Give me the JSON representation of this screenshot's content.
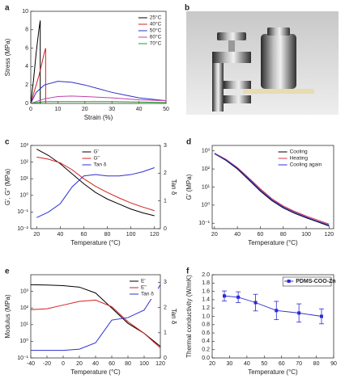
{
  "chart_data": [
    {
      "type": "line",
      "label": "a",
      "xlabel": "Strain (%)",
      "ylabel": "Stress (MPa)",
      "xlim": [
        0,
        50
      ],
      "xticks": [
        0,
        10,
        20,
        30,
        40,
        50
      ],
      "ylim": [
        0,
        10
      ],
      "yticks": [
        0,
        2,
        4,
        6,
        8,
        10
      ],
      "legend": "upper right",
      "series": [
        {
          "name": "25°C",
          "color": "#000000",
          "x": [
            0,
            1,
            2,
            3,
            3.5,
            3.5
          ],
          "values": [
            0,
            2.5,
            5.5,
            8,
            9,
            0
          ]
        },
        {
          "name": "40°C",
          "color": "#d62020",
          "x": [
            0,
            1,
            2,
            3,
            4,
            5,
            5.5,
            5.5
          ],
          "values": [
            0,
            1,
            2,
            3,
            4.2,
            5.5,
            6,
            0
          ]
        },
        {
          "name": "50°C",
          "color": "#3030c0",
          "x": [
            0,
            2,
            5,
            10,
            15,
            20,
            25,
            30,
            35,
            40,
            45,
            50
          ],
          "values": [
            0,
            1.2,
            2,
            2.4,
            2.3,
            2,
            1.6,
            1.2,
            0.9,
            0.6,
            0.45,
            0.3
          ]
        },
        {
          "name": "60°C",
          "color": "#c040b0",
          "x": [
            0,
            5,
            10,
            15,
            20,
            30,
            40,
            50
          ],
          "values": [
            0,
            0.5,
            0.75,
            0.8,
            0.75,
            0.6,
            0.4,
            0.3
          ]
        },
        {
          "name": "70°C",
          "color": "#20a020",
          "x": [
            0,
            5,
            10,
            20,
            30,
            40,
            50
          ],
          "values": [
            0,
            0.2,
            0.2,
            0.2,
            0.2,
            0.15,
            0.1
          ]
        }
      ]
    },
    {
      "type": "image",
      "label": "b"
    },
    {
      "type": "line",
      "label": "c",
      "xlabel": "Temperature (°C)",
      "ylabel": "G', G\" (MPa)",
      "y2label": "Tan δ",
      "ylog": true,
      "xlim": [
        15,
        125
      ],
      "xticks": [
        20,
        40,
        60,
        80,
        100,
        120
      ],
      "ylim": [
        0.01,
        1000
      ],
      "yticks": [
        {
          "value": 0.01,
          "label": "10⁻²"
        },
        {
          "value": 0.1,
          "label": "10⁻¹"
        },
        {
          "value": 1,
          "label": "10⁰"
        },
        {
          "value": 10,
          "label": "10¹"
        },
        {
          "value": 100,
          "label": "10²"
        },
        {
          "value": 1000,
          "label": "10³"
        }
      ],
      "y2lim": [
        0,
        3
      ],
      "y2ticks": [
        0,
        1,
        2,
        3
      ],
      "legend": "upper center",
      "x": [
        20,
        30,
        40,
        50,
        60,
        70,
        80,
        90,
        100,
        110,
        120
      ],
      "series": [
        {
          "name": "G'",
          "color": "#000000",
          "values": [
            600,
            250,
            80,
            20,
            5,
            1.5,
            0.6,
            0.3,
            0.15,
            0.09,
            0.06
          ]
        },
        {
          "name": "G\"",
          "color": "#d62020",
          "values": [
            200,
            150,
            90,
            35,
            10,
            3.5,
            1.5,
            0.7,
            0.35,
            0.2,
            0.12
          ]
        },
        {
          "name": "Tan δ",
          "color": "#3030d0",
          "axis": "y2",
          "values": [
            0.4,
            0.6,
            0.9,
            1.5,
            1.9,
            1.95,
            1.9,
            1.9,
            1.95,
            2.05,
            2.2
          ]
        }
      ]
    },
    {
      "type": "line",
      "label": "d",
      "xlabel": "Temperature (°C)",
      "ylabel": "G' (MPa)",
      "ylog": true,
      "xlim": [
        18,
        124
      ],
      "xticks": [
        20,
        40,
        60,
        80,
        100,
        120
      ],
      "ylim": [
        0.05,
        2000
      ],
      "yticks": [
        {
          "value": 0.1,
          "label": "10⁻¹"
        },
        {
          "value": 1,
          "label": "10⁰"
        },
        {
          "value": 10,
          "label": "10¹"
        },
        {
          "value": 100,
          "label": "10²"
        },
        {
          "value": 1000,
          "label": "10³"
        }
      ],
      "legend": "upper right",
      "x": [
        20,
        30,
        40,
        50,
        60,
        70,
        80,
        90,
        100,
        110,
        120
      ],
      "series": [
        {
          "name": "Cooling",
          "color": "#000000",
          "values": [
            700,
            300,
            100,
            25,
            6,
            1.8,
            0.7,
            0.35,
            0.2,
            0.12,
            0.07
          ]
        },
        {
          "name": "Heating",
          "color": "#e03050",
          "values": [
            750,
            340,
            120,
            32,
            8,
            2.3,
            0.9,
            0.45,
            0.25,
            0.15,
            0.09
          ]
        },
        {
          "name": "Cooling again",
          "color": "#3030d0",
          "values": [
            720,
            320,
            110,
            28,
            7,
            2,
            0.8,
            0.4,
            0.22,
            0.13,
            0.08
          ]
        }
      ]
    },
    {
      "type": "line",
      "label": "e",
      "xlabel": "Temperature (°C)",
      "ylabel": "Modulus (MPa)",
      "y2label": "Tan δ",
      "ylog": true,
      "xlim": [
        -40,
        120
      ],
      "xticks": [
        -40,
        -20,
        0,
        20,
        40,
        60,
        80,
        100,
        120
      ],
      "ylim": [
        0.1,
        10000
      ],
      "yticks": [
        {
          "value": 0.1,
          "label": "10⁻¹"
        },
        {
          "value": 1,
          "label": "10⁰"
        },
        {
          "value": 10,
          "label": "10¹"
        },
        {
          "value": 100,
          "label": "10²"
        },
        {
          "value": 1000,
          "label": "10³"
        }
      ],
      "y2lim": [
        0,
        3.3
      ],
      "y2ticks": [
        0,
        1,
        2,
        3
      ],
      "legend": "upper right",
      "x": [
        -40,
        -20,
        0,
        20,
        40,
        60,
        80,
        100,
        120
      ],
      "series": [
        {
          "name": "E'",
          "color": "#000000",
          "values": [
            2500,
            2400,
            2200,
            1800,
            800,
            100,
            12,
            3,
            0.5
          ]
        },
        {
          "name": "E\"",
          "color": "#d62020",
          "values": [
            80,
            90,
            150,
            250,
            300,
            120,
            15,
            3,
            0.4
          ]
        },
        {
          "name": "Tan δ",
          "color": "#3030d0",
          "axis": "y2",
          "values": [
            0.3,
            0.3,
            0.3,
            0.35,
            0.6,
            1.5,
            1.6,
            1.9,
            2.9
          ]
        }
      ]
    },
    {
      "type": "errorbar",
      "label": "f",
      "xlabel": "Temperature (°C)",
      "ylabel": "Thermal conductivity (W/mK)",
      "xlim": [
        20,
        90
      ],
      "xticks": [
        20,
        30,
        40,
        50,
        60,
        70,
        80,
        90
      ],
      "ylim": [
        0,
        2
      ],
      "yticks": [
        {
          "value": 0,
          "label": "0.0"
        },
        {
          "value": 0.2,
          "label": "0.2"
        },
        {
          "value": 0.4,
          "label": "0.4"
        },
        {
          "value": 0.6,
          "label": "0.6"
        },
        {
          "value": 0.8,
          "label": "0.8"
        },
        {
          "value": 1,
          "label": "1.0"
        },
        {
          "value": 1.2,
          "label": "1.2"
        },
        {
          "value": 1.4,
          "label": "1.4"
        },
        {
          "value": 1.6,
          "label": "1.6"
        },
        {
          "value": 1.8,
          "label": "1.8"
        },
        {
          "value": 2,
          "label": "2.0"
        }
      ],
      "legend": "upper right",
      "x": [
        27,
        35,
        45,
        57,
        70,
        83
      ],
      "series": [
        {
          "name": "PDMS-COO-Zn",
          "color": "#2a2ad0",
          "values": [
            1.49,
            1.46,
            1.33,
            1.14,
            1.08,
            1.0
          ],
          "errors": [
            0.12,
            0.13,
            0.2,
            0.22,
            0.22,
            0.18
          ]
        }
      ]
    }
  ]
}
